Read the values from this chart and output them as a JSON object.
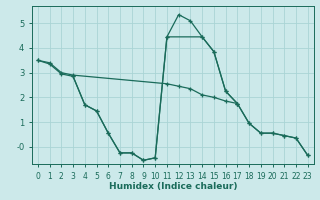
{
  "xlabel": "Humidex (Indice chaleur)",
  "background_color": "#cce9ea",
  "line_color": "#1a6b5a",
  "grid_color": "#aad4d5",
  "xlim": [
    -0.5,
    23.5
  ],
  "ylim": [
    -0.7,
    5.7
  ],
  "xticks": [
    0,
    1,
    2,
    3,
    4,
    5,
    6,
    7,
    8,
    9,
    10,
    11,
    12,
    13,
    14,
    15,
    16,
    17,
    18,
    19,
    20,
    21,
    22,
    23
  ],
  "yticks": [
    0,
    1,
    2,
    3,
    4,
    5
  ],
  "ytick_labels": [
    "-0",
    "1",
    "2",
    "3",
    "4",
    "5"
  ],
  "line1_x": [
    0,
    1,
    2,
    3,
    11,
    12,
    13,
    14,
    15,
    16,
    17
  ],
  "line1_y": [
    3.5,
    3.4,
    3.0,
    2.9,
    2.55,
    2.45,
    2.35,
    2.1,
    2.0,
    1.85,
    1.75
  ],
  "line2_x": [
    0,
    1,
    2,
    3,
    4,
    5,
    6,
    7,
    8,
    9,
    10,
    11,
    12,
    13,
    14,
    15,
    16,
    17,
    18,
    19,
    20,
    21,
    22,
    23
  ],
  "line2_y": [
    3.5,
    3.35,
    2.95,
    2.85,
    1.7,
    1.45,
    0.55,
    -0.25,
    -0.25,
    -0.55,
    -0.45,
    4.45,
    5.35,
    5.1,
    4.45,
    3.85,
    2.25,
    1.75,
    0.95,
    0.55,
    0.55,
    0.45,
    0.35,
    -0.35
  ],
  "line3_x": [
    3,
    4,
    5,
    6,
    7,
    8,
    9,
    10,
    11,
    14,
    15,
    16,
    17,
    18,
    19,
    20,
    21,
    22,
    23
  ],
  "line3_y": [
    2.85,
    1.7,
    1.45,
    0.55,
    -0.25,
    -0.25,
    -0.55,
    -0.45,
    4.45,
    4.45,
    3.85,
    2.25,
    1.75,
    0.95,
    0.55,
    0.55,
    0.45,
    0.35,
    -0.35
  ]
}
